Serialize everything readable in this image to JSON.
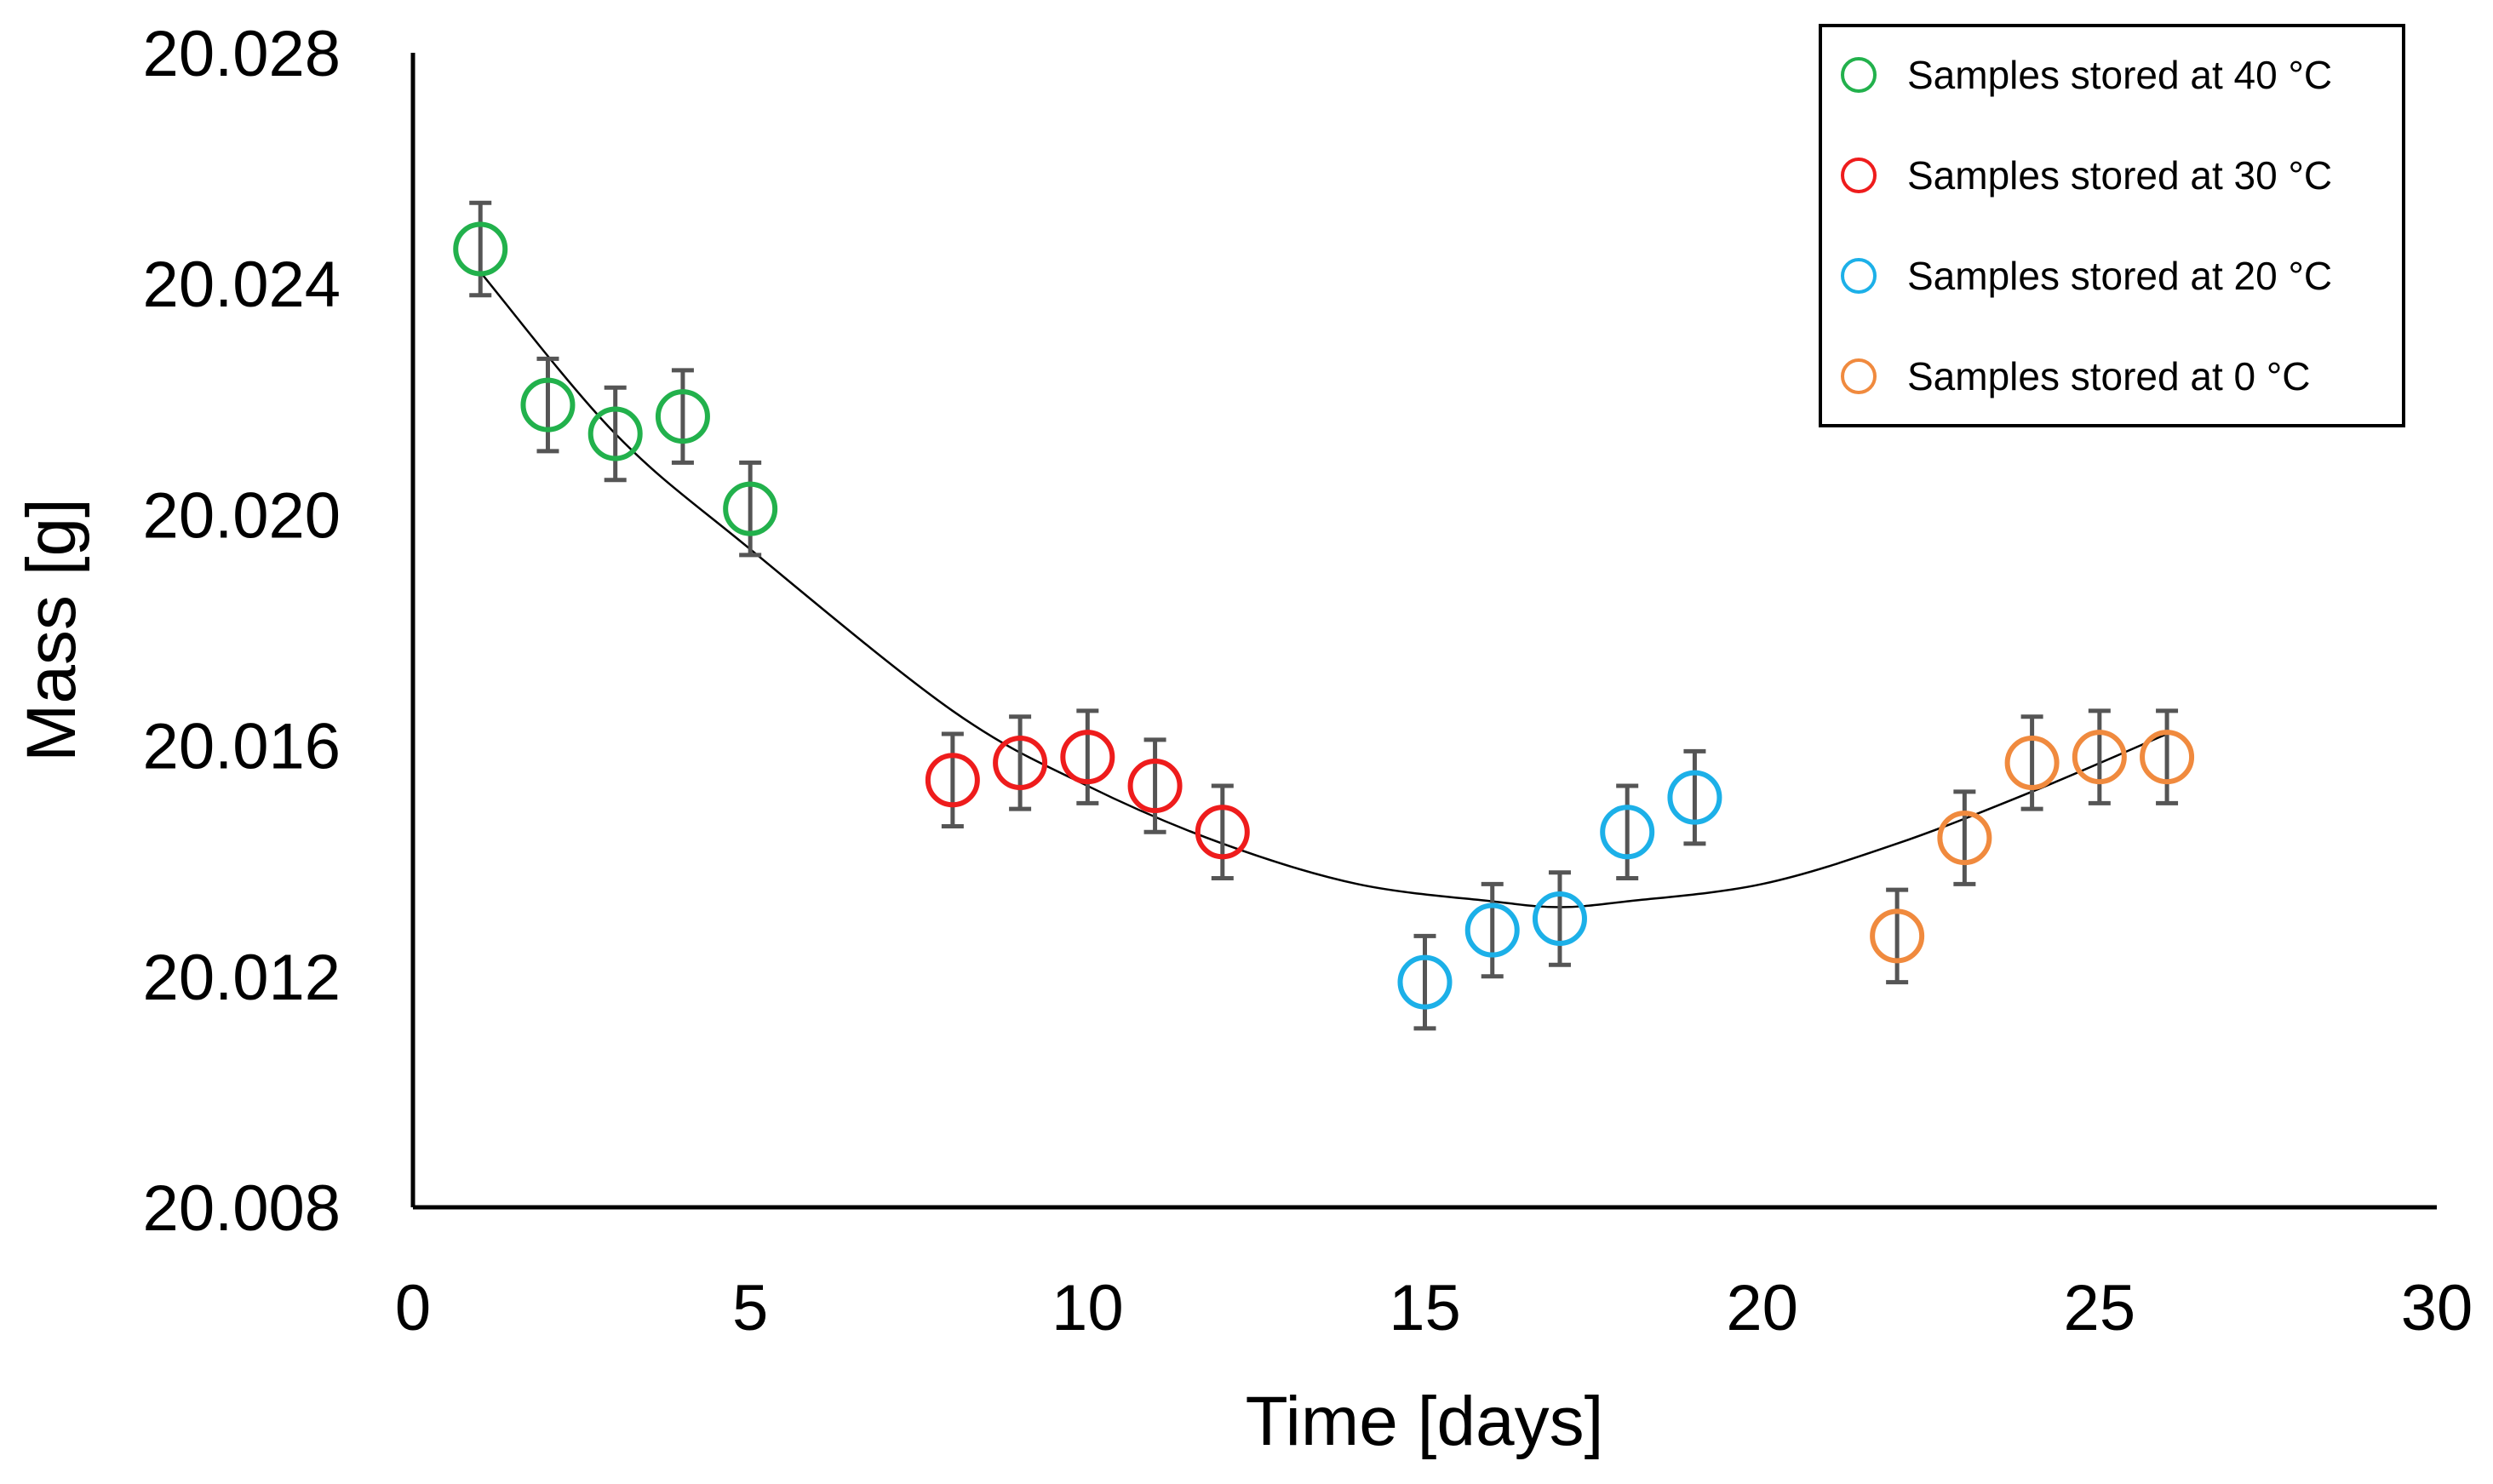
{
  "chart_data": {
    "type": "scatter",
    "xlabel": "Time [days]",
    "ylabel": "Mass [g]",
    "xlim": [
      0,
      30
    ],
    "ylim": [
      20.008,
      20.028
    ],
    "x_ticks": [
      0,
      5,
      10,
      15,
      20,
      25,
      30
    ],
    "y_ticks": [
      20.008,
      20.012,
      20.016,
      20.02,
      20.024,
      20.028
    ],
    "y_tick_labels": [
      "20.008",
      "20.012",
      "20.016",
      "20.020",
      "20.024",
      "20.028"
    ],
    "x_tick_labels": [
      "0",
      "5",
      "10",
      "15",
      "20",
      "25",
      "30"
    ],
    "grid": false,
    "legend_position": "top-right",
    "error_bar": 0.0008,
    "series": [
      {
        "name": "Samples stored at 40 °C",
        "color": "#22b14c",
        "x": [
          1,
          2,
          3,
          4,
          5
        ],
        "y": [
          20.0246,
          20.0219,
          20.0214,
          20.0217,
          20.0201
        ]
      },
      {
        "name": "Samples stored at 30 °C",
        "color": "#ee1c1c",
        "x": [
          8,
          9,
          10,
          11,
          12
        ],
        "y": [
          20.0154,
          20.0157,
          20.0158,
          20.0153,
          20.0145
        ]
      },
      {
        "name": "Samples stored at 20 °C",
        "color": "#1cb0e8",
        "x": [
          15,
          16,
          17,
          18,
          19
        ],
        "y": [
          20.0119,
          20.0128,
          20.013,
          20.0145,
          20.0151
        ]
      },
      {
        "name": "Samples stored at 0 °C",
        "color": "#f08a3e",
        "x": [
          22,
          23,
          24,
          25,
          26
        ],
        "y": [
          20.0127,
          20.0144,
          20.0157,
          20.0158,
          20.0158
        ]
      }
    ],
    "trendline": {
      "type": "polynomial-2",
      "color": "#000000",
      "x": [
        1,
        3,
        5,
        8,
        10,
        12,
        14,
        16,
        17,
        18,
        20,
        22,
        24,
        26
      ],
      "y": [
        20.0242,
        20.0214,
        20.0194,
        20.0166,
        20.0153,
        20.0143,
        20.0136,
        20.0133,
        20.0132,
        20.0133,
        20.0136,
        20.0143,
        20.0152,
        20.0162
      ]
    }
  }
}
